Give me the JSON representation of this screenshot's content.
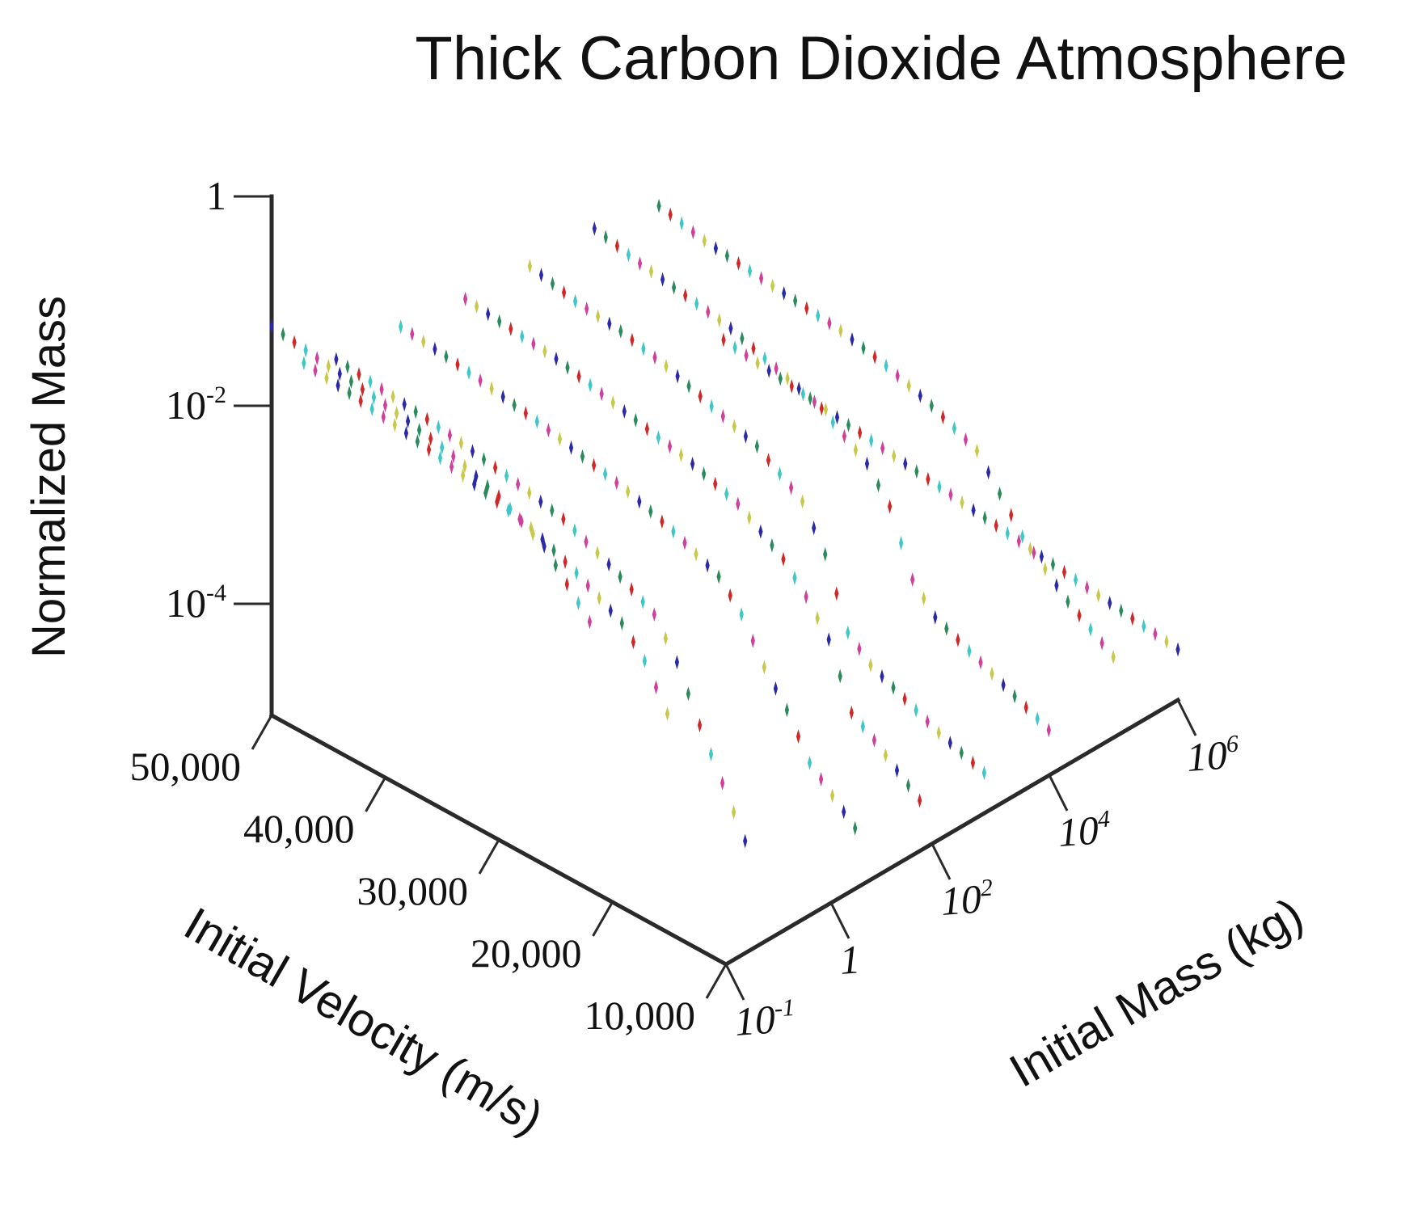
{
  "chart_data": {
    "type": "scatter",
    "title": "Thick Carbon Dioxide Atmosphere",
    "axes": {
      "z_label": "Normalized Mass",
      "x_label": "Initial Velocity (m/s)",
      "y_label": "Initial Mass (kg)",
      "z_scale": "log",
      "y_scale": "log",
      "z_ticks": [
        {
          "base": "1",
          "exp": ""
        },
        {
          "base": "10",
          "exp": "-2"
        },
        {
          "base": "10",
          "exp": "-4"
        }
      ],
      "x_ticks": [
        "50,000",
        "40,000",
        "30,000",
        "20,000",
        "10,000"
      ],
      "y_ticks": [
        {
          "base": "10",
          "exp": "-1"
        },
        {
          "base": "1",
          "exp": ""
        },
        {
          "base": "10",
          "exp": "2"
        },
        {
          "base": "10",
          "exp": "4"
        },
        {
          "base": "10",
          "exp": "6"
        }
      ]
    },
    "velocity_range_m_s": [
      10000,
      50000
    ],
    "marker_colors": [
      "#2a2aa8",
      "#c8c84a",
      "#d0409a",
      "#3fc7c7",
      "#d02828",
      "#2a8a5a"
    ],
    "series": [
      {
        "initial_mass_log10": 6.0,
        "points": [
          [
            10000,
            -3.9
          ],
          [
            50000,
            -3.3
          ]
        ]
      },
      {
        "initial_mass_log10": 5.0,
        "points": [
          [
            10000,
            -3.6
          ],
          [
            14000,
            -3.3
          ],
          [
            18000,
            -2.9
          ],
          [
            22000,
            -2.3
          ],
          [
            26000,
            -2.1
          ],
          [
            30000,
            -1.95
          ],
          [
            34000,
            -1.85
          ],
          [
            38000,
            -1.8
          ],
          [
            42000,
            -1.75
          ],
          [
            46000,
            -1.7
          ],
          [
            50000,
            -1.6
          ]
        ]
      },
      {
        "initial_mass_log10": 4.0,
        "points": [
          [
            10000,
            -3.95
          ],
          [
            14000,
            -3.75
          ],
          [
            18000,
            -3.55
          ],
          [
            20000,
            -3.45
          ],
          [
            22000,
            -3.2
          ],
          [
            24000,
            -2.6
          ],
          [
            26000,
            -2.3
          ],
          [
            30000,
            -2.0
          ],
          [
            34000,
            -1.85
          ],
          [
            38000,
            -1.7
          ],
          [
            42000,
            -1.62
          ],
          [
            46000,
            -1.55
          ],
          [
            50000,
            -1.45
          ]
        ]
      },
      {
        "initial_mass_log10": 3.0,
        "points": [
          [
            10000,
            -4.0
          ],
          [
            14000,
            -3.85
          ],
          [
            18000,
            -3.65
          ],
          [
            20000,
            -3.55
          ],
          [
            22000,
            -3.35
          ],
          [
            24000,
            -2.7
          ],
          [
            26000,
            -2.3
          ],
          [
            30000,
            -2.0
          ],
          [
            34000,
            -1.85
          ],
          [
            38000,
            -1.7
          ],
          [
            42000,
            -1.6
          ],
          [
            46000,
            -1.55
          ],
          [
            50000,
            -1.45
          ]
        ]
      },
      {
        "initial_mass_log10": 2.0,
        "points": [
          [
            10000,
            -3.9
          ],
          [
            14000,
            -3.55
          ],
          [
            16000,
            -3.4
          ],
          [
            18000,
            -2.8
          ],
          [
            20000,
            -2.5
          ],
          [
            22000,
            -2.25
          ],
          [
            26000,
            -1.95
          ],
          [
            30000,
            -1.8
          ],
          [
            34000,
            -1.7
          ],
          [
            38000,
            -1.6
          ],
          [
            42000,
            -1.5
          ],
          [
            46000,
            -1.45
          ],
          [
            50000,
            -1.4
          ]
        ]
      },
      {
        "initial_mass_log10": 1.0,
        "points": [
          [
            10000,
            -3.8
          ],
          [
            14000,
            -3.4
          ],
          [
            16000,
            -3.0
          ],
          [
            18000,
            -2.7
          ],
          [
            20000,
            -2.3
          ],
          [
            22000,
            -2.05
          ],
          [
            26000,
            -1.85
          ],
          [
            30000,
            -1.7
          ],
          [
            34000,
            -1.6
          ],
          [
            38000,
            -1.5
          ],
          [
            42000,
            -1.42
          ],
          [
            46000,
            -1.35
          ],
          [
            50000,
            -1.3
          ]
        ]
      },
      {
        "initial_mass_log10": 0.0,
        "points": [
          [
            14000,
            -3.8
          ],
          [
            18000,
            -2.9
          ],
          [
            20000,
            -2.4
          ],
          [
            22000,
            -2.05
          ],
          [
            26000,
            -1.8
          ],
          [
            30000,
            -1.6
          ],
          [
            34000,
            -1.5
          ],
          [
            38000,
            -1.42
          ],
          [
            42000,
            -1.35
          ],
          [
            46000,
            -1.3
          ],
          [
            50000,
            -1.25
          ]
        ]
      },
      {
        "initial_mass_log10": -0.5,
        "points": [
          [
            18000,
            -2.6
          ],
          [
            20000,
            -2.2
          ],
          [
            22000,
            -1.95
          ],
          [
            26000,
            -1.7
          ],
          [
            30000,
            -1.5
          ],
          [
            34000,
            -1.4
          ],
          [
            38000,
            -1.3
          ],
          [
            42000,
            -1.22
          ],
          [
            46000,
            -1.15
          ],
          [
            50000,
            -1.1
          ]
        ]
      },
      {
        "initial_mass_log10": -1.0,
        "points": [
          [
            22000,
            -1.75
          ],
          [
            24000,
            -1.5
          ],
          [
            26000,
            -1.25
          ],
          [
            30000,
            -1.0
          ],
          [
            34000,
            -0.85
          ],
          [
            38000,
            -0.75
          ],
          [
            42000,
            -0.68
          ],
          [
            46000,
            -0.62
          ],
          [
            50000,
            -0.55
          ]
        ]
      }
    ]
  }
}
